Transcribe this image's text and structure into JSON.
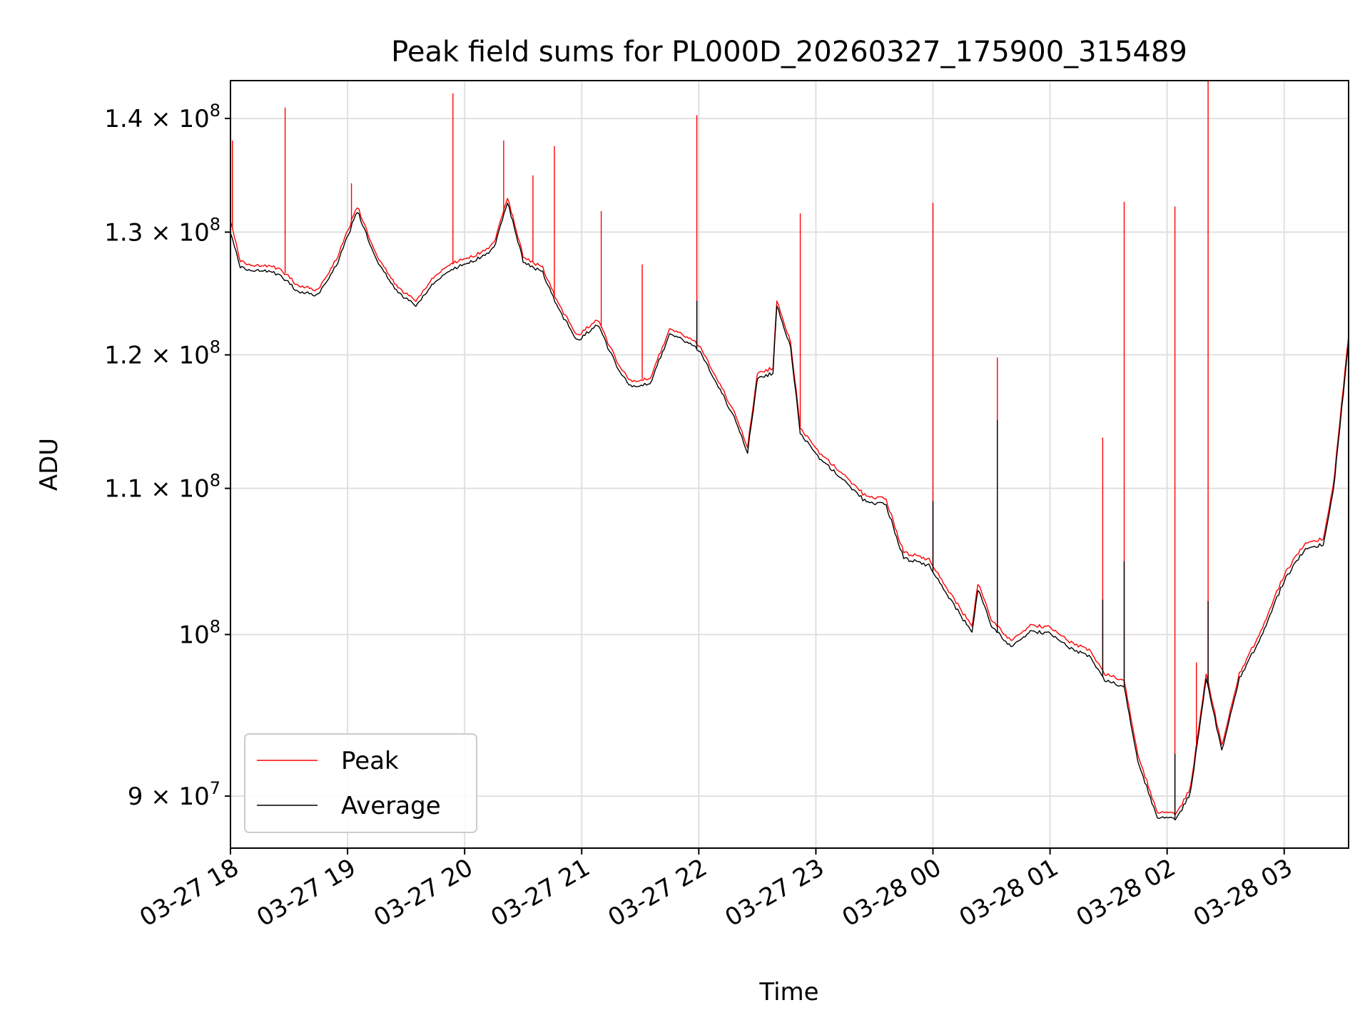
{
  "chart_data": {
    "type": "line",
    "title": "Peak field sums for PL000D_20260327_175900_315489",
    "xlabel": "Time",
    "ylabel": "ADU",
    "yscale": "log",
    "xlim": [
      "2026-03-27 18:00",
      "2026-03-28 03:33"
    ],
    "ylim": [
      87000000,
      143500000
    ],
    "grid": true,
    "legend_position": "lower-left",
    "x_ticks": [
      {
        "t": "2026-03-27 18:00",
        "label": "03-27 18"
      },
      {
        "t": "2026-03-27 19:00",
        "label": "03-27 19"
      },
      {
        "t": "2026-03-27 20:00",
        "label": "03-27 20"
      },
      {
        "t": "2026-03-27 21:00",
        "label": "03-27 21"
      },
      {
        "t": "2026-03-27 22:00",
        "label": "03-27 22"
      },
      {
        "t": "2026-03-27 23:00",
        "label": "03-27 23"
      },
      {
        "t": "2026-03-28 00:00",
        "label": "03-28 00"
      },
      {
        "t": "2026-03-28 01:00",
        "label": "03-28 01"
      },
      {
        "t": "2026-03-28 02:00",
        "label": "03-28 02"
      },
      {
        "t": "2026-03-28 03:00",
        "label": "03-28 03"
      }
    ],
    "y_ticks": [
      {
        "value": 90000000,
        "mantissa": "9",
        "base": "10",
        "exp": "7"
      },
      {
        "value": 100000000,
        "mantissa": "",
        "base": "10",
        "exp": "8"
      },
      {
        "value": 110000000,
        "mantissa": "1.1",
        "base": "10",
        "exp": "8"
      },
      {
        "value": 120000000,
        "mantissa": "1.2",
        "base": "10",
        "exp": "8"
      },
      {
        "value": 130000000,
        "mantissa": "1.3",
        "base": "10",
        "exp": "8"
      },
      {
        "value": 140000000,
        "mantissa": "1.4",
        "base": "10",
        "exp": "8"
      }
    ],
    "series": [
      {
        "name": "Peak",
        "color": "#ff0000",
        "points": [
          [
            "2026-03-27 18:00",
            131000000
          ],
          [
            "2026-03-27 18:05",
            127500000
          ],
          [
            "2026-03-27 18:15",
            127200000
          ],
          [
            "2026-03-27 18:25",
            127000000
          ],
          [
            "2026-03-27 18:35",
            125500000
          ],
          [
            "2026-03-27 18:45",
            125200000
          ],
          [
            "2026-03-27 18:55",
            128000000
          ],
          [
            "2026-03-27 19:05",
            132200000
          ],
          [
            "2026-03-27 19:15",
            128000000
          ],
          [
            "2026-03-27 19:25",
            125500000
          ],
          [
            "2026-03-27 19:35",
            124300000
          ],
          [
            "2026-03-27 19:45",
            126500000
          ],
          [
            "2026-03-27 19:55",
            127500000
          ],
          [
            "2026-03-27 20:05",
            128000000
          ],
          [
            "2026-03-27 20:15",
            129000000
          ],
          [
            "2026-03-27 20:22",
            133000000
          ],
          [
            "2026-03-27 20:30",
            128000000
          ],
          [
            "2026-03-27 20:40",
            127000000
          ],
          [
            "2026-03-27 20:48",
            124000000
          ],
          [
            "2026-03-27 20:58",
            121500000
          ],
          [
            "2026-03-27 21:08",
            122800000
          ],
          [
            "2026-03-27 21:18",
            119500000
          ],
          [
            "2026-03-27 21:25",
            118000000
          ],
          [
            "2026-03-27 21:35",
            118200000
          ],
          [
            "2026-03-27 21:45",
            122000000
          ],
          [
            "2026-03-27 21:53",
            121500000
          ],
          [
            "2026-03-27 22:00",
            120800000
          ],
          [
            "2026-03-27 22:10",
            118000000
          ],
          [
            "2026-03-27 22:20",
            115000000
          ],
          [
            "2026-03-27 22:25",
            113000000
          ],
          [
            "2026-03-27 22:30",
            118500000
          ],
          [
            "2026-03-27 22:38",
            119000000
          ],
          [
            "2026-03-27 22:40",
            124400000
          ],
          [
            "2026-03-27 22:47",
            121000000
          ],
          [
            "2026-03-27 22:52",
            114500000
          ],
          [
            "2026-03-27 23:00",
            112800000
          ],
          [
            "2026-03-27 23:12",
            111300000
          ],
          [
            "2026-03-27 23:25",
            109500000
          ],
          [
            "2026-03-27 23:36",
            109200000
          ],
          [
            "2026-03-27 23:45",
            105500000
          ],
          [
            "2026-03-27 23:58",
            105000000
          ],
          [
            "2026-03-28 00:10",
            102500000
          ],
          [
            "2026-03-28 00:20",
            100500000
          ],
          [
            "2026-03-28 00:23",
            103400000
          ],
          [
            "2026-03-28 00:30",
            101000000
          ],
          [
            "2026-03-28 00:40",
            99600000
          ],
          [
            "2026-03-28 00:50",
            100600000
          ],
          [
            "2026-03-28 01:00",
            100500000
          ],
          [
            "2026-03-28 01:10",
            99500000
          ],
          [
            "2026-03-28 01:20",
            99000000
          ],
          [
            "2026-03-28 01:28",
            97500000
          ],
          [
            "2026-03-28 01:38",
            97000000
          ],
          [
            "2026-03-28 01:45",
            92500000
          ],
          [
            "2026-03-28 01:55",
            89000000
          ],
          [
            "2026-03-28 02:05",
            89000000
          ],
          [
            "2026-03-28 02:12",
            90500000
          ],
          [
            "2026-03-28 02:20",
            97500000
          ],
          [
            "2026-03-28 02:28",
            93000000
          ],
          [
            "2026-03-28 02:37",
            97500000
          ],
          [
            "2026-03-28 02:48",
            100200000
          ],
          [
            "2026-03-28 03:00",
            104000000
          ],
          [
            "2026-03-28 03:10",
            106000000
          ],
          [
            "2026-03-28 03:20",
            106500000
          ],
          [
            "2026-03-28 03:25",
            110000000
          ],
          [
            "2026-03-28 03:33",
            121500000
          ]
        ],
        "spikes": [
          [
            "2026-03-27 18:01",
            138000000
          ],
          [
            "2026-03-27 18:28",
            141000000
          ],
          [
            "2026-03-27 19:02",
            134200000
          ],
          [
            "2026-03-27 19:54",
            142300000
          ],
          [
            "2026-03-27 20:20",
            138000000
          ],
          [
            "2026-03-27 20:35",
            134900000
          ],
          [
            "2026-03-27 20:46",
            137500000
          ],
          [
            "2026-03-27 21:10",
            131800000
          ],
          [
            "2026-03-27 21:31",
            127300000
          ],
          [
            "2026-03-27 21:59",
            140300000
          ],
          [
            "2026-03-27 22:52",
            131600000
          ],
          [
            "2026-03-28 00:00",
            132500000
          ],
          [
            "2026-03-28 00:33",
            119800000
          ],
          [
            "2026-03-28 01:27",
            113700000
          ],
          [
            "2026-03-28 01:38",
            132600000
          ],
          [
            "2026-03-28 02:04",
            132200000
          ],
          [
            "2026-03-28 02:15",
            98200000
          ],
          [
            "2026-03-28 02:21",
            143500000
          ]
        ]
      },
      {
        "name": "Average",
        "color": "#000000",
        "points": [
          [
            "2026-03-27 18:00",
            130000000
          ],
          [
            "2026-03-27 18:05",
            127000000
          ],
          [
            "2026-03-27 18:15",
            126800000
          ],
          [
            "2026-03-27 18:25",
            126500000
          ],
          [
            "2026-03-27 18:35",
            125000000
          ],
          [
            "2026-03-27 18:45",
            124800000
          ],
          [
            "2026-03-27 18:55",
            127500000
          ],
          [
            "2026-03-27 19:05",
            131800000
          ],
          [
            "2026-03-27 19:15",
            127600000
          ],
          [
            "2026-03-27 19:25",
            125100000
          ],
          [
            "2026-03-27 19:35",
            123900000
          ],
          [
            "2026-03-27 19:45",
            126000000
          ],
          [
            "2026-03-27 19:55",
            127000000
          ],
          [
            "2026-03-27 20:05",
            127600000
          ],
          [
            "2026-03-27 20:15",
            128600000
          ],
          [
            "2026-03-27 20:22",
            132600000
          ],
          [
            "2026-03-27 20:30",
            127600000
          ],
          [
            "2026-03-27 20:40",
            126600000
          ],
          [
            "2026-03-27 20:48",
            123600000
          ],
          [
            "2026-03-27 20:58",
            121100000
          ],
          [
            "2026-03-27 21:08",
            122400000
          ],
          [
            "2026-03-27 21:18",
            119100000
          ],
          [
            "2026-03-27 21:25",
            117600000
          ],
          [
            "2026-03-27 21:35",
            117800000
          ],
          [
            "2026-03-27 21:45",
            121600000
          ],
          [
            "2026-03-27 21:53",
            121100000
          ],
          [
            "2026-03-27 22:00",
            120400000
          ],
          [
            "2026-03-27 22:10",
            117600000
          ],
          [
            "2026-03-27 22:20",
            114600000
          ],
          [
            "2026-03-27 22:25",
            112600000
          ],
          [
            "2026-03-27 22:30",
            118100000
          ],
          [
            "2026-03-27 22:38",
            118600000
          ],
          [
            "2026-03-27 22:40",
            124000000
          ],
          [
            "2026-03-27 22:47",
            120600000
          ],
          [
            "2026-03-27 22:52",
            114100000
          ],
          [
            "2026-03-27 23:00",
            112400000
          ],
          [
            "2026-03-27 23:12",
            110900000
          ],
          [
            "2026-03-27 23:25",
            109100000
          ],
          [
            "2026-03-27 23:36",
            108800000
          ],
          [
            "2026-03-27 23:45",
            105100000
          ],
          [
            "2026-03-27 23:58",
            104600000
          ],
          [
            "2026-03-28 00:10",
            102100000
          ],
          [
            "2026-03-28 00:20",
            100100000
          ],
          [
            "2026-03-28 00:23",
            103000000
          ],
          [
            "2026-03-28 00:30",
            100600000
          ],
          [
            "2026-03-28 00:40",
            99200000
          ],
          [
            "2026-03-28 00:50",
            100200000
          ],
          [
            "2026-03-28 01:00",
            100100000
          ],
          [
            "2026-03-28 01:10",
            99100000
          ],
          [
            "2026-03-28 01:20",
            98600000
          ],
          [
            "2026-03-28 01:28",
            97100000
          ],
          [
            "2026-03-28 01:38",
            96600000
          ],
          [
            "2026-03-28 01:45",
            92100000
          ],
          [
            "2026-03-28 01:55",
            88700000
          ],
          [
            "2026-03-28 02:05",
            88700000
          ],
          [
            "2026-03-28 02:12",
            90200000
          ],
          [
            "2026-03-28 02:20",
            97200000
          ],
          [
            "2026-03-28 02:28",
            92700000
          ],
          [
            "2026-03-28 02:37",
            97200000
          ],
          [
            "2026-03-28 02:48",
            99800000
          ],
          [
            "2026-03-28 03:00",
            103600000
          ],
          [
            "2026-03-28 03:10",
            105600000
          ],
          [
            "2026-03-28 03:20",
            106100000
          ],
          [
            "2026-03-28 03:25",
            109600000
          ],
          [
            "2026-03-28 03:33",
            121000000
          ]
        ],
        "spikes": [
          [
            "2026-03-27 21:59",
            124300000
          ],
          [
            "2026-03-28 00:00",
            109100000
          ],
          [
            "2026-03-28 00:33",
            115000000
          ],
          [
            "2026-03-28 01:27",
            102300000
          ],
          [
            "2026-03-28 01:38",
            104900000
          ],
          [
            "2026-03-28 02:04",
            92500000
          ],
          [
            "2026-03-28 02:21",
            102200000
          ]
        ]
      }
    ]
  }
}
